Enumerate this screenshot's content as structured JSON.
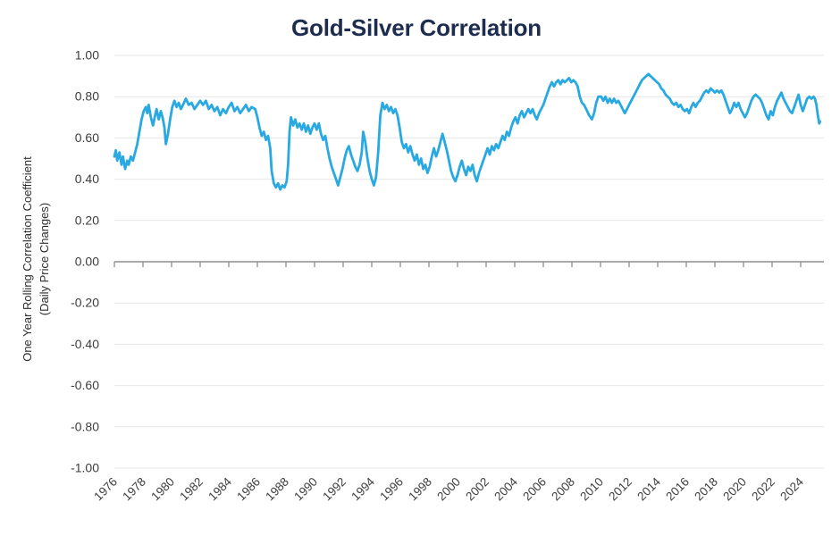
{
  "chart_data": {
    "type": "line",
    "title": "Gold-Silver Correlation",
    "ylabel": "One Year Rolling Correlation Coefficient",
    "ylabel_line2": "(Daily Price Changes)",
    "xlabel": "",
    "ylim": [
      -1.0,
      1.0
    ],
    "xlim": [
      1976,
      2025.6
    ],
    "grid": true,
    "legend_position": "none",
    "line_color": "#29a9e1",
    "colors": {
      "title": "#1d2c4f",
      "tick_text": "#3d3d3d",
      "gridline": "#e7e7e7",
      "zero_axis": "#8f8f8f",
      "background": "#ffffff"
    },
    "yticks": [
      {
        "v": 1.0,
        "label": "1.00"
      },
      {
        "v": 0.8,
        "label": "0.80"
      },
      {
        "v": 0.6,
        "label": "0.60"
      },
      {
        "v": 0.4,
        "label": "0.40"
      },
      {
        "v": 0.2,
        "label": "0.20"
      },
      {
        "v": 0.0,
        "label": "0.00"
      },
      {
        "v": -0.2,
        "label": "-0.20"
      },
      {
        "v": -0.4,
        "label": "-0.40"
      },
      {
        "v": -0.6,
        "label": "-0.60"
      },
      {
        "v": -0.8,
        "label": "-0.80"
      },
      {
        "v": -1.0,
        "label": "-1.00"
      }
    ],
    "xticks": [
      {
        "v": 1976,
        "label": "1976"
      },
      {
        "v": 1978,
        "label": "1978"
      },
      {
        "v": 1980,
        "label": "1980"
      },
      {
        "v": 1982,
        "label": "1982"
      },
      {
        "v": 1984,
        "label": "1984"
      },
      {
        "v": 1986,
        "label": "1986"
      },
      {
        "v": 1988,
        "label": "1988"
      },
      {
        "v": 1990,
        "label": "1990"
      },
      {
        "v": 1992,
        "label": "1992"
      },
      {
        "v": 1994,
        "label": "1994"
      },
      {
        "v": 1996,
        "label": "1996"
      },
      {
        "v": 1998,
        "label": "1998"
      },
      {
        "v": 2000,
        "label": "2000"
      },
      {
        "v": 2002,
        "label": "2002"
      },
      {
        "v": 2004,
        "label": "2004"
      },
      {
        "v": 2006,
        "label": "2006"
      },
      {
        "v": 2008,
        "label": "2008"
      },
      {
        "v": 2010,
        "label": "2010"
      },
      {
        "v": 2012,
        "label": "2012"
      },
      {
        "v": 2014,
        "label": "2014"
      },
      {
        "v": 2016,
        "label": "2016"
      },
      {
        "v": 2018,
        "label": "2018"
      },
      {
        "v": 2020,
        "label": "2020"
      },
      {
        "v": 2022,
        "label": "2022"
      },
      {
        "v": 2024,
        "label": "2024"
      }
    ],
    "points": [
      [
        1976.0,
        0.51
      ],
      [
        1976.1,
        0.54
      ],
      [
        1976.2,
        0.49
      ],
      [
        1976.35,
        0.53
      ],
      [
        1976.5,
        0.47
      ],
      [
        1976.6,
        0.51
      ],
      [
        1976.75,
        0.45
      ],
      [
        1976.9,
        0.49
      ],
      [
        1977.0,
        0.47
      ],
      [
        1977.15,
        0.51
      ],
      [
        1977.3,
        0.49
      ],
      [
        1977.45,
        0.53
      ],
      [
        1977.6,
        0.57
      ],
      [
        1977.75,
        0.63
      ],
      [
        1977.9,
        0.69
      ],
      [
        1978.05,
        0.73
      ],
      [
        1978.2,
        0.75
      ],
      [
        1978.3,
        0.72
      ],
      [
        1978.4,
        0.76
      ],
      [
        1978.55,
        0.7
      ],
      [
        1978.7,
        0.66
      ],
      [
        1978.85,
        0.71
      ],
      [
        1978.95,
        0.74
      ],
      [
        1979.1,
        0.69
      ],
      [
        1979.25,
        0.73
      ],
      [
        1979.4,
        0.69
      ],
      [
        1979.5,
        0.65
      ],
      [
        1979.6,
        0.57
      ],
      [
        1979.75,
        0.62
      ],
      [
        1979.9,
        0.69
      ],
      [
        1980.05,
        0.75
      ],
      [
        1980.2,
        0.78
      ],
      [
        1980.35,
        0.75
      ],
      [
        1980.5,
        0.77
      ],
      [
        1980.65,
        0.74
      ],
      [
        1980.8,
        0.76
      ],
      [
        1981.0,
        0.79
      ],
      [
        1981.2,
        0.76
      ],
      [
        1981.4,
        0.77
      ],
      [
        1981.6,
        0.74
      ],
      [
        1981.8,
        0.76
      ],
      [
        1982.0,
        0.78
      ],
      [
        1982.2,
        0.76
      ],
      [
        1982.4,
        0.78
      ],
      [
        1982.6,
        0.74
      ],
      [
        1982.8,
        0.76
      ],
      [
        1983.0,
        0.73
      ],
      [
        1983.2,
        0.75
      ],
      [
        1983.4,
        0.71
      ],
      [
        1983.6,
        0.74
      ],
      [
        1983.8,
        0.72
      ],
      [
        1984.0,
        0.75
      ],
      [
        1984.2,
        0.77
      ],
      [
        1984.4,
        0.73
      ],
      [
        1984.6,
        0.75
      ],
      [
        1984.8,
        0.72
      ],
      [
        1985.0,
        0.74
      ],
      [
        1985.2,
        0.76
      ],
      [
        1985.4,
        0.73
      ],
      [
        1985.6,
        0.75
      ],
      [
        1985.85,
        0.74
      ],
      [
        1986.0,
        0.7
      ],
      [
        1986.15,
        0.65
      ],
      [
        1986.3,
        0.61
      ],
      [
        1986.45,
        0.63
      ],
      [
        1986.6,
        0.59
      ],
      [
        1986.75,
        0.61
      ],
      [
        1986.9,
        0.55
      ],
      [
        1987.0,
        0.44
      ],
      [
        1987.15,
        0.38
      ],
      [
        1987.3,
        0.36
      ],
      [
        1987.45,
        0.38
      ],
      [
        1987.6,
        0.35
      ],
      [
        1987.75,
        0.37
      ],
      [
        1987.9,
        0.36
      ],
      [
        1988.05,
        0.39
      ],
      [
        1988.15,
        0.47
      ],
      [
        1988.25,
        0.63
      ],
      [
        1988.35,
        0.7
      ],
      [
        1988.5,
        0.66
      ],
      [
        1988.65,
        0.69
      ],
      [
        1988.8,
        0.65
      ],
      [
        1988.95,
        0.67
      ],
      [
        1989.1,
        0.64
      ],
      [
        1989.25,
        0.67
      ],
      [
        1989.4,
        0.63
      ],
      [
        1989.55,
        0.66
      ],
      [
        1989.7,
        0.62
      ],
      [
        1989.85,
        0.65
      ],
      [
        1990.0,
        0.67
      ],
      [
        1990.15,
        0.64
      ],
      [
        1990.3,
        0.67
      ],
      [
        1990.45,
        0.62
      ],
      [
        1990.6,
        0.59
      ],
      [
        1990.75,
        0.61
      ],
      [
        1990.9,
        0.55
      ],
      [
        1991.05,
        0.5
      ],
      [
        1991.2,
        0.46
      ],
      [
        1991.35,
        0.43
      ],
      [
        1991.5,
        0.4
      ],
      [
        1991.65,
        0.37
      ],
      [
        1991.8,
        0.41
      ],
      [
        1991.95,
        0.45
      ],
      [
        1992.1,
        0.5
      ],
      [
        1992.25,
        0.54
      ],
      [
        1992.4,
        0.56
      ],
      [
        1992.55,
        0.52
      ],
      [
        1992.7,
        0.49
      ],
      [
        1992.85,
        0.46
      ],
      [
        1993.0,
        0.44
      ],
      [
        1993.15,
        0.47
      ],
      [
        1993.3,
        0.53
      ],
      [
        1993.4,
        0.63
      ],
      [
        1993.55,
        0.58
      ],
      [
        1993.7,
        0.5
      ],
      [
        1993.85,
        0.44
      ],
      [
        1994.0,
        0.4
      ],
      [
        1994.15,
        0.37
      ],
      [
        1994.3,
        0.41
      ],
      [
        1994.45,
        0.53
      ],
      [
        1994.6,
        0.71
      ],
      [
        1994.75,
        0.77
      ],
      [
        1994.9,
        0.74
      ],
      [
        1995.05,
        0.76
      ],
      [
        1995.2,
        0.73
      ],
      [
        1995.35,
        0.75
      ],
      [
        1995.5,
        0.72
      ],
      [
        1995.65,
        0.74
      ],
      [
        1995.8,
        0.71
      ],
      [
        1995.95,
        0.65
      ],
      [
        1996.1,
        0.58
      ],
      [
        1996.25,
        0.55
      ],
      [
        1996.4,
        0.57
      ],
      [
        1996.55,
        0.53
      ],
      [
        1996.7,
        0.56
      ],
      [
        1996.85,
        0.52
      ],
      [
        1997.0,
        0.49
      ],
      [
        1997.15,
        0.52
      ],
      [
        1997.3,
        0.47
      ],
      [
        1997.45,
        0.5
      ],
      [
        1997.6,
        0.45
      ],
      [
        1997.75,
        0.47
      ],
      [
        1997.9,
        0.43
      ],
      [
        1998.05,
        0.46
      ],
      [
        1998.2,
        0.51
      ],
      [
        1998.35,
        0.55
      ],
      [
        1998.5,
        0.51
      ],
      [
        1998.65,
        0.54
      ],
      [
        1998.8,
        0.58
      ],
      [
        1998.95,
        0.62
      ],
      [
        1999.1,
        0.58
      ],
      [
        1999.25,
        0.54
      ],
      [
        1999.4,
        0.49
      ],
      [
        1999.55,
        0.44
      ],
      [
        1999.7,
        0.41
      ],
      [
        1999.85,
        0.39
      ],
      [
        2000.0,
        0.42
      ],
      [
        2000.15,
        0.46
      ],
      [
        2000.3,
        0.49
      ],
      [
        2000.45,
        0.45
      ],
      [
        2000.6,
        0.42
      ],
      [
        2000.75,
        0.46
      ],
      [
        2000.9,
        0.44
      ],
      [
        2001.05,
        0.47
      ],
      [
        2001.2,
        0.42
      ],
      [
        2001.35,
        0.39
      ],
      [
        2001.5,
        0.43
      ],
      [
        2001.65,
        0.46
      ],
      [
        2001.8,
        0.49
      ],
      [
        2001.95,
        0.52
      ],
      [
        2002.1,
        0.55
      ],
      [
        2002.25,
        0.52
      ],
      [
        2002.4,
        0.56
      ],
      [
        2002.55,
        0.54
      ],
      [
        2002.7,
        0.57
      ],
      [
        2002.85,
        0.55
      ],
      [
        2003.0,
        0.58
      ],
      [
        2003.15,
        0.61
      ],
      [
        2003.3,
        0.59
      ],
      [
        2003.45,
        0.63
      ],
      [
        2003.6,
        0.61
      ],
      [
        2003.75,
        0.65
      ],
      [
        2003.9,
        0.68
      ],
      [
        2004.05,
        0.7
      ],
      [
        2004.2,
        0.67
      ],
      [
        2004.35,
        0.71
      ],
      [
        2004.5,
        0.73
      ],
      [
        2004.65,
        0.7
      ],
      [
        2004.8,
        0.72
      ],
      [
        2004.95,
        0.74
      ],
      [
        2005.1,
        0.72
      ],
      [
        2005.25,
        0.74
      ],
      [
        2005.4,
        0.71
      ],
      [
        2005.55,
        0.69
      ],
      [
        2005.7,
        0.72
      ],
      [
        2005.85,
        0.74
      ],
      [
        2006.0,
        0.76
      ],
      [
        2006.15,
        0.79
      ],
      [
        2006.3,
        0.82
      ],
      [
        2006.45,
        0.85
      ],
      [
        2006.6,
        0.87
      ],
      [
        2006.75,
        0.85
      ],
      [
        2006.9,
        0.87
      ],
      [
        2007.05,
        0.88
      ],
      [
        2007.2,
        0.86
      ],
      [
        2007.35,
        0.88
      ],
      [
        2007.5,
        0.87
      ],
      [
        2007.65,
        0.88
      ],
      [
        2007.8,
        0.89
      ],
      [
        2007.95,
        0.87
      ],
      [
        2008.1,
        0.88
      ],
      [
        2008.25,
        0.87
      ],
      [
        2008.4,
        0.85
      ],
      [
        2008.55,
        0.8
      ],
      [
        2008.7,
        0.77
      ],
      [
        2008.85,
        0.76
      ],
      [
        2009.0,
        0.74
      ],
      [
        2009.2,
        0.71
      ],
      [
        2009.4,
        0.69
      ],
      [
        2009.55,
        0.72
      ],
      [
        2009.7,
        0.77
      ],
      [
        2009.85,
        0.8
      ],
      [
        2010.05,
        0.8
      ],
      [
        2010.2,
        0.78
      ],
      [
        2010.35,
        0.8
      ],
      [
        2010.5,
        0.77
      ],
      [
        2010.65,
        0.79
      ],
      [
        2010.8,
        0.77
      ],
      [
        2010.95,
        0.79
      ],
      [
        2011.1,
        0.77
      ],
      [
        2011.25,
        0.78
      ],
      [
        2011.4,
        0.76
      ],
      [
        2011.55,
        0.74
      ],
      [
        2011.7,
        0.72
      ],
      [
        2011.85,
        0.74
      ],
      [
        2012.0,
        0.76
      ],
      [
        2012.15,
        0.78
      ],
      [
        2012.3,
        0.8
      ],
      [
        2012.45,
        0.82
      ],
      [
        2012.6,
        0.84
      ],
      [
        2012.75,
        0.86
      ],
      [
        2012.9,
        0.88
      ],
      [
        2013.05,
        0.89
      ],
      [
        2013.2,
        0.9
      ],
      [
        2013.35,
        0.91
      ],
      [
        2013.5,
        0.9
      ],
      [
        2013.65,
        0.89
      ],
      [
        2013.8,
        0.88
      ],
      [
        2013.95,
        0.87
      ],
      [
        2014.1,
        0.86
      ],
      [
        2014.25,
        0.84
      ],
      [
        2014.4,
        0.83
      ],
      [
        2014.55,
        0.81
      ],
      [
        2014.7,
        0.8
      ],
      [
        2014.85,
        0.79
      ],
      [
        2015.0,
        0.77
      ],
      [
        2015.15,
        0.76
      ],
      [
        2015.3,
        0.77
      ],
      [
        2015.45,
        0.75
      ],
      [
        2015.6,
        0.76
      ],
      [
        2015.75,
        0.74
      ],
      [
        2015.9,
        0.73
      ],
      [
        2016.05,
        0.74
      ],
      [
        2016.2,
        0.72
      ],
      [
        2016.35,
        0.75
      ],
      [
        2016.5,
        0.77
      ],
      [
        2016.65,
        0.75
      ],
      [
        2016.8,
        0.77
      ],
      [
        2016.95,
        0.78
      ],
      [
        2017.1,
        0.8
      ],
      [
        2017.25,
        0.82
      ],
      [
        2017.4,
        0.83
      ],
      [
        2017.55,
        0.82
      ],
      [
        2017.7,
        0.84
      ],
      [
        2017.85,
        0.83
      ],
      [
        2018.0,
        0.82
      ],
      [
        2018.15,
        0.83
      ],
      [
        2018.3,
        0.82
      ],
      [
        2018.45,
        0.83
      ],
      [
        2018.6,
        0.81
      ],
      [
        2018.75,
        0.78
      ],
      [
        2018.9,
        0.75
      ],
      [
        2019.05,
        0.72
      ],
      [
        2019.2,
        0.74
      ],
      [
        2019.35,
        0.77
      ],
      [
        2019.5,
        0.75
      ],
      [
        2019.65,
        0.77
      ],
      [
        2019.8,
        0.74
      ],
      [
        2019.95,
        0.72
      ],
      [
        2020.1,
        0.7
      ],
      [
        2020.25,
        0.72
      ],
      [
        2020.4,
        0.75
      ],
      [
        2020.55,
        0.78
      ],
      [
        2020.7,
        0.8
      ],
      [
        2020.85,
        0.81
      ],
      [
        2021.0,
        0.8
      ],
      [
        2021.15,
        0.79
      ],
      [
        2021.3,
        0.77
      ],
      [
        2021.45,
        0.74
      ],
      [
        2021.6,
        0.71
      ],
      [
        2021.75,
        0.69
      ],
      [
        2021.9,
        0.73
      ],
      [
        2022.05,
        0.71
      ],
      [
        2022.2,
        0.75
      ],
      [
        2022.35,
        0.78
      ],
      [
        2022.5,
        0.8
      ],
      [
        2022.65,
        0.82
      ],
      [
        2022.8,
        0.79
      ],
      [
        2022.95,
        0.77
      ],
      [
        2023.1,
        0.75
      ],
      [
        2023.25,
        0.73
      ],
      [
        2023.4,
        0.72
      ],
      [
        2023.55,
        0.75
      ],
      [
        2023.7,
        0.78
      ],
      [
        2023.85,
        0.81
      ],
      [
        2024.0,
        0.76
      ],
      [
        2024.15,
        0.73
      ],
      [
        2024.3,
        0.76
      ],
      [
        2024.45,
        0.79
      ],
      [
        2024.6,
        0.8
      ],
      [
        2024.75,
        0.79
      ],
      [
        2024.9,
        0.8
      ],
      [
        2025.0,
        0.79
      ],
      [
        2025.1,
        0.76
      ],
      [
        2025.2,
        0.71
      ],
      [
        2025.3,
        0.67
      ],
      [
        2025.35,
        0.68
      ]
    ]
  }
}
